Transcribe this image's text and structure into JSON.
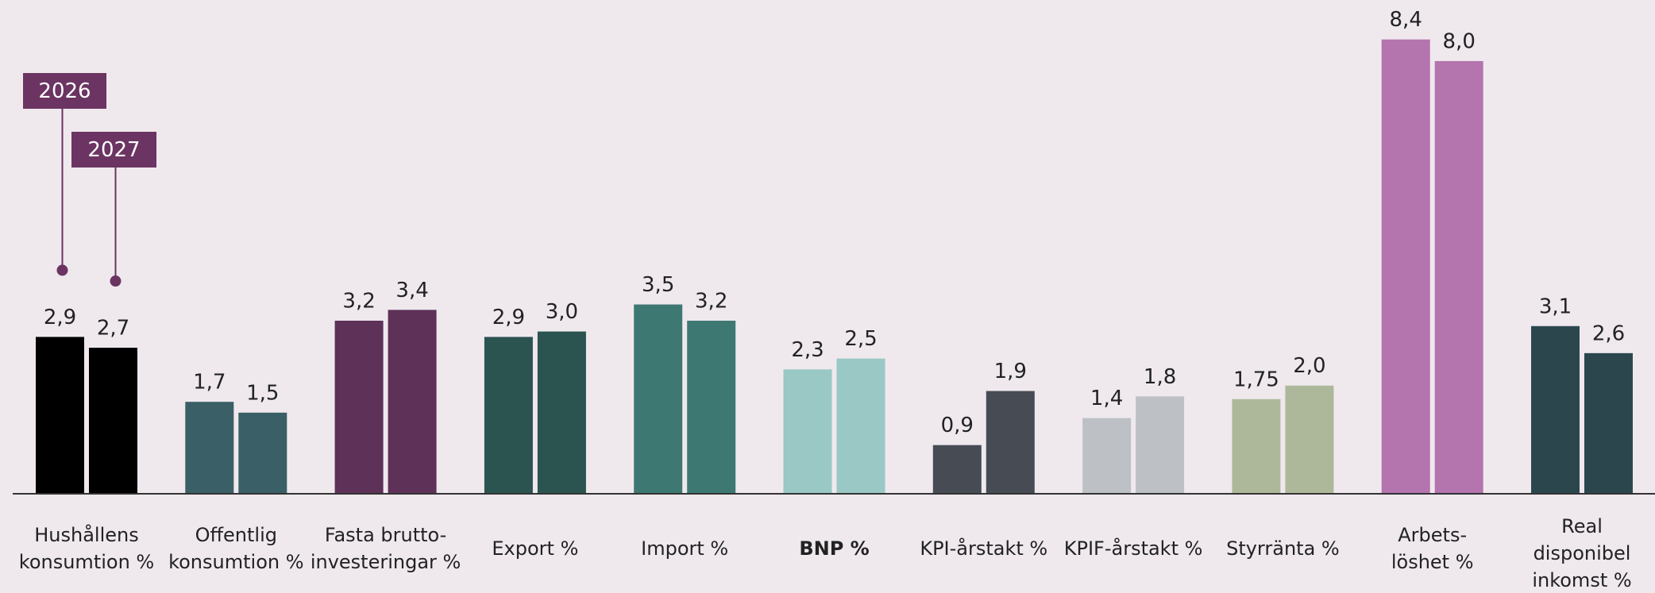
{
  "chart_data": {
    "type": "bar",
    "categories": [
      [
        "Hushållens",
        "konsumtion %"
      ],
      [
        "Offentlig",
        "konsumtion %"
      ],
      [
        "Fasta brutto-",
        "investeringar %"
      ],
      [
        "Export %"
      ],
      [
        "Import %"
      ],
      [
        "BNP %"
      ],
      [
        "KPI-årstakt %"
      ],
      [
        "KPIF-årstakt %"
      ],
      [
        "Styrränta %"
      ],
      [
        "Arbets-",
        "löshet %"
      ],
      [
        "Real",
        "disponibel",
        "inkomst %"
      ]
    ],
    "category_colors": [
      "#000000",
      "#3a5f66",
      "#5e3159",
      "#2b5350",
      "#3e7872",
      "#9ac8c4",
      "#474c54",
      "#bdc1c5",
      "#adb89a",
      "#b474ae",
      "#2b474d"
    ],
    "bold_category": 5,
    "series": [
      {
        "name": "2026",
        "values": [
          2.9,
          1.7,
          3.2,
          2.9,
          3.5,
          2.3,
          0.9,
          1.4,
          1.75,
          8.4,
          3.1
        ],
        "value_labels": [
          "2,9",
          "1,7",
          "3,2",
          "2,9",
          "3,5",
          "2,3",
          "0,9",
          "1,4",
          "1,75",
          "8,4",
          "3,1"
        ]
      },
      {
        "name": "2027",
        "values": [
          2.7,
          1.5,
          3.4,
          3.0,
          3.2,
          2.5,
          1.9,
          1.8,
          2.0,
          8.0,
          2.6
        ],
        "value_labels": [
          "2,7",
          "1,5",
          "3,4",
          "3,0",
          "3,2",
          "2,5",
          "1,9",
          "1,8",
          "2,0",
          "8,0",
          "2,6"
        ]
      }
    ],
    "legend_color": "#6b3462",
    "ylim": [
      0,
      9.1
    ]
  }
}
